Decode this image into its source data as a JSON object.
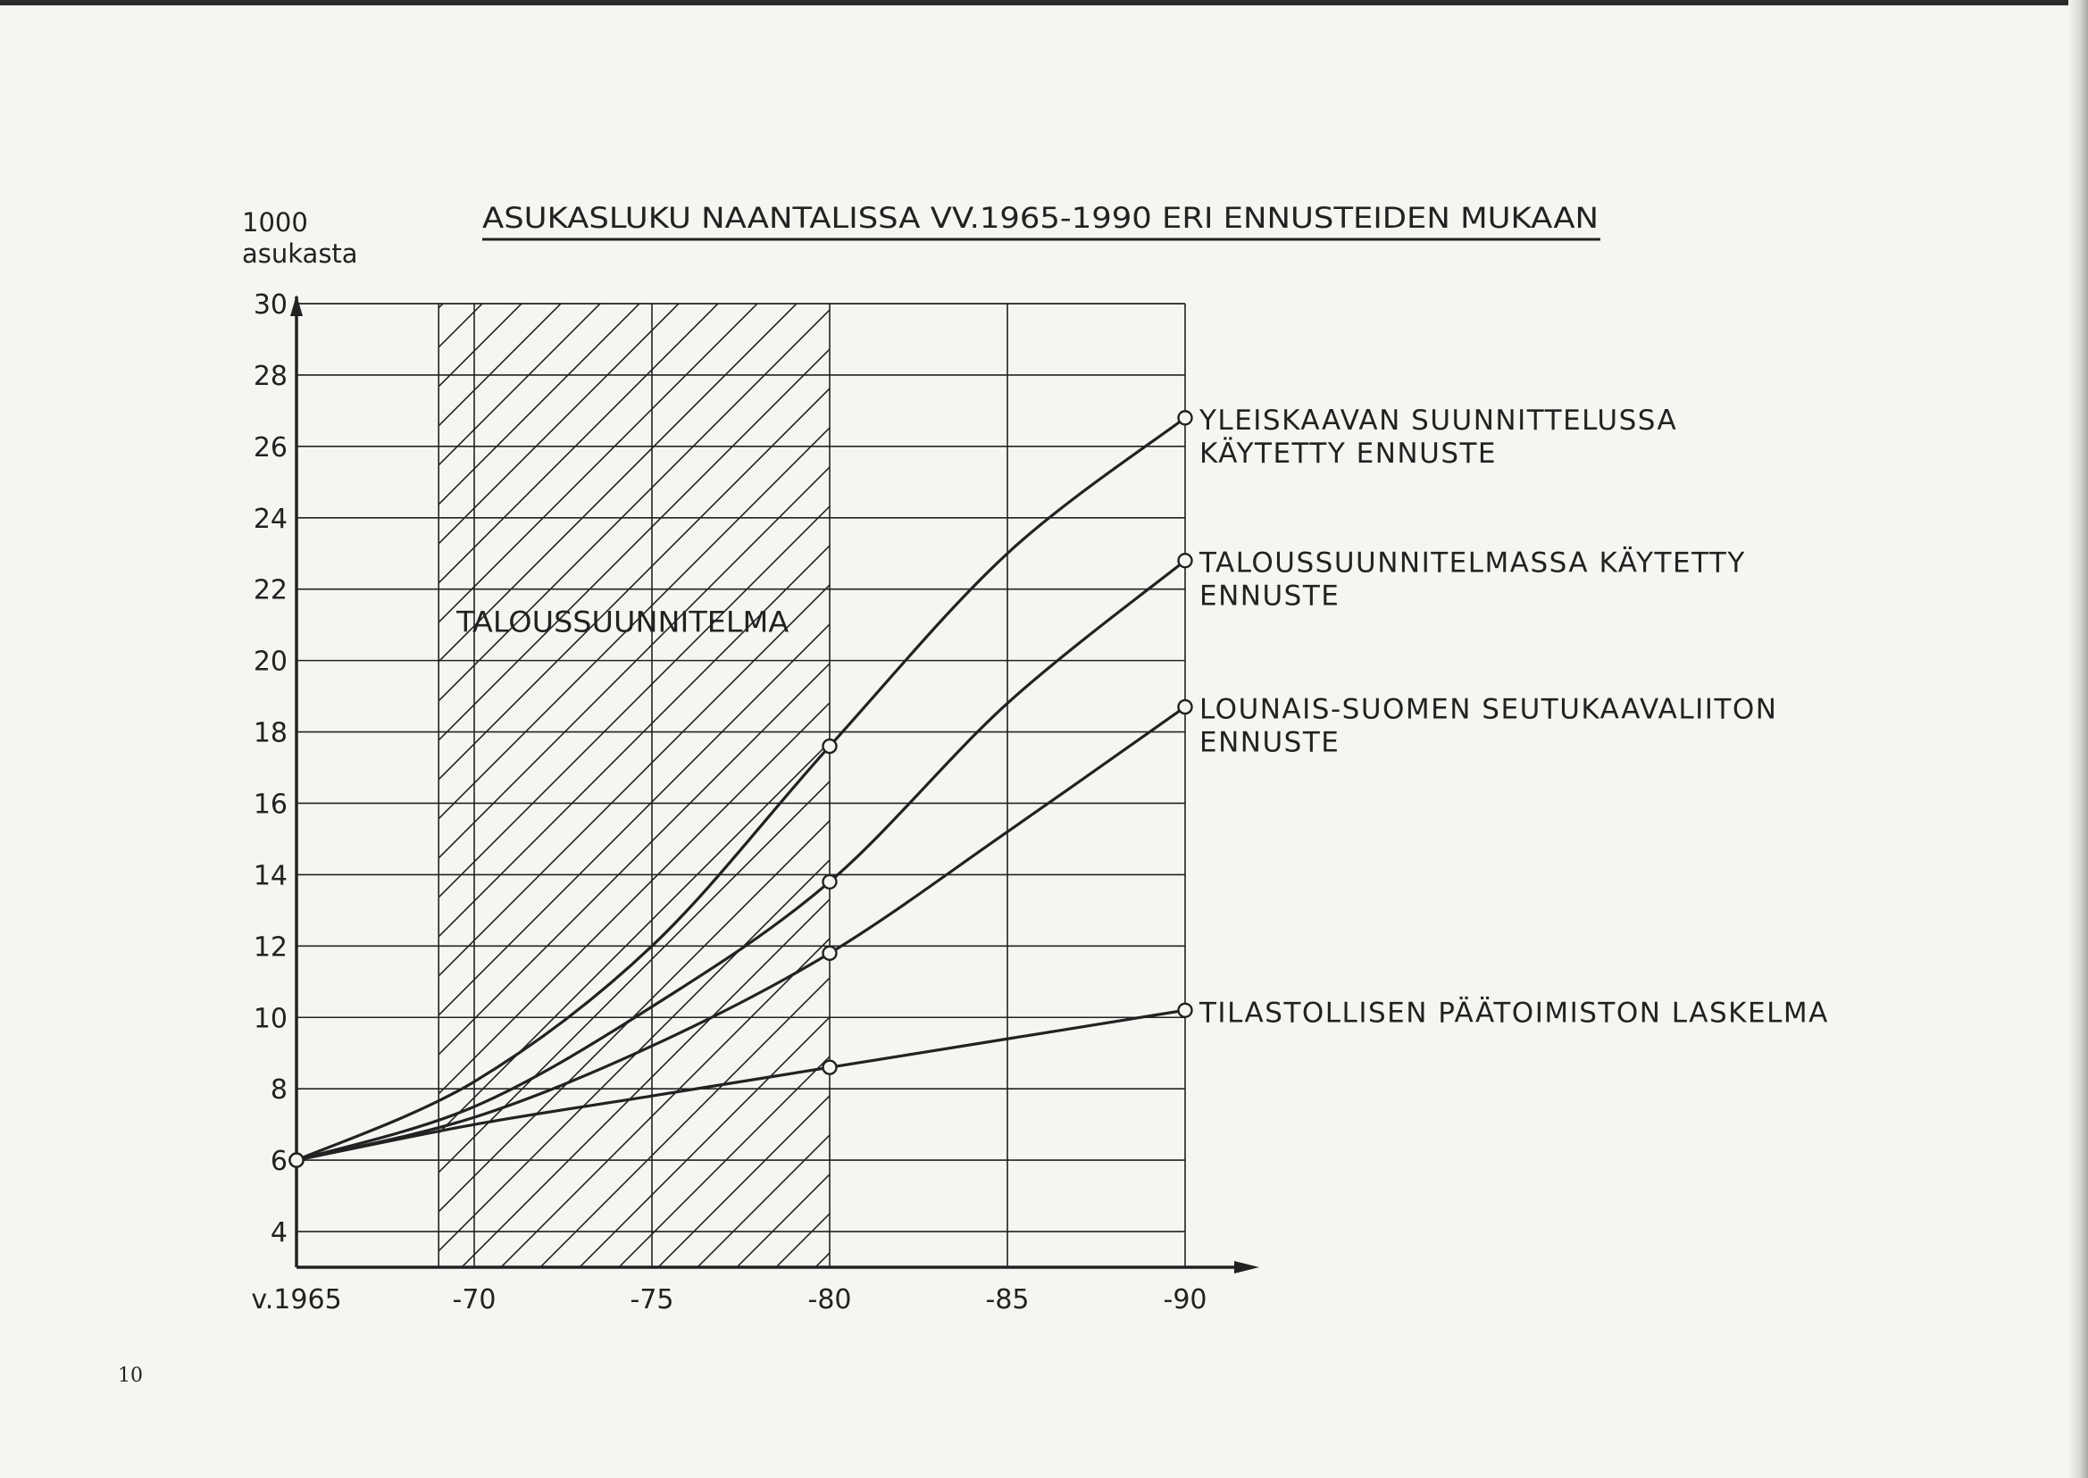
{
  "page_number": "10",
  "chart_data": {
    "type": "line",
    "title": "ASUKASLUKU NAANTALISSA VV.1965-1990 ERI ENNUSTEIDEN MUKAAN",
    "ylabel_line1": "1000",
    "ylabel_line2": "asukasta",
    "xlabel": "",
    "x_ticks": [
      1965,
      1970,
      1975,
      1980,
      1985,
      1990
    ],
    "x_tick_labels": [
      "v.1965",
      "-70",
      "-75",
      "-80",
      "-85",
      "-90"
    ],
    "y_ticks": [
      4,
      6,
      8,
      10,
      12,
      14,
      16,
      18,
      20,
      22,
      24,
      26,
      28,
      30
    ],
    "xlim": [
      1965,
      1990
    ],
    "ylim": [
      3,
      30
    ],
    "grid": true,
    "shaded_region": {
      "x_from": 1969,
      "x_to": 1980,
      "label": "TALOUSSUUNNITELMA",
      "pattern": "hatched"
    },
    "series": [
      {
        "name": "YLEISKAAVAN SUUNNITTELUSSA KÄYTETTY ENNUSTE",
        "label_lines": [
          "YLEISKAAVAN SUUNNITTELUSSA",
          "KÄYTETTY ENNUSTE"
        ],
        "x": [
          1965,
          1970,
          1975,
          1980,
          1985,
          1990
        ],
        "y": [
          6.0,
          8.2,
          12.0,
          17.6,
          23.0,
          26.8
        ],
        "markers_at": [
          1965,
          1980,
          1990
        ]
      },
      {
        "name": "TALOUSSUUNNITELMASSA KÄYTETTY ENNUSTE",
        "label_lines": [
          "TALOUSSUUNNITELMASSA KÄYTETTY",
          "ENNUSTE"
        ],
        "x": [
          1965,
          1970,
          1975,
          1980,
          1985,
          1990
        ],
        "y": [
          6.0,
          7.5,
          10.3,
          13.8,
          18.8,
          22.8
        ],
        "markers_at": [
          1965,
          1980,
          1990
        ]
      },
      {
        "name": "LOUNAIS-SUOMEN SEUTUKAAVALIITON ENNUSTE",
        "label_lines": [
          "LOUNAIS-SUOMEN SEUTUKAAVALIITON",
          "ENNUSTE"
        ],
        "x": [
          1965,
          1970,
          1975,
          1980,
          1985,
          1990
        ],
        "y": [
          6.0,
          7.2,
          9.2,
          11.8,
          15.2,
          18.7
        ],
        "markers_at": [
          1965,
          1980,
          1990
        ]
      },
      {
        "name": "TILASTOLLISEN PÄÄTOIMISTON LASKELMA",
        "label_lines": [
          "TILASTOLLISEN PÄÄTOIMISTON LASKELMA"
        ],
        "x": [
          1965,
          1970,
          1975,
          1980,
          1985,
          1990
        ],
        "y": [
          6.0,
          7.0,
          7.8,
          8.6,
          9.4,
          10.2
        ],
        "markers_at": [
          1965,
          1980,
          1990
        ]
      }
    ]
  }
}
